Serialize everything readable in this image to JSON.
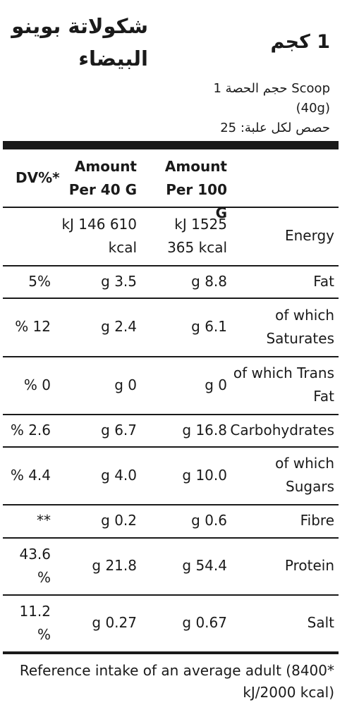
{
  "header": {
    "title_line1": "شكولاتة بوينو",
    "title_line2": "البيضاء",
    "weight": "1 كجم"
  },
  "serving": {
    "size_line1": "حجم الحصة 1 Scoop",
    "size_line2": "(40g)",
    "per_pack": "حصص لكل علبة: 25"
  },
  "table": {
    "columns": {
      "dv": "DV%*",
      "per40_line1": "Amount",
      "per40_line2": "Per 40 G",
      "per100_line1": "Amount",
      "per100_line2": "Per 100 G"
    },
    "rows": [
      {
        "name": [
          "Energy"
        ],
        "dv": [
          ""
        ],
        "per40": [
          "kJ 146 610",
          "kcal"
        ],
        "per100": [
          "kJ 1525",
          "365 kcal"
        ]
      },
      {
        "name": [
          "Fat"
        ],
        "dv": [
          "5%"
        ],
        "per40": [
          "g 3.5"
        ],
        "per100": [
          "g 8.8"
        ]
      },
      {
        "name": [
          "of which",
          "Saturates"
        ],
        "dv": [
          "% 12"
        ],
        "per40": [
          "g 2.4"
        ],
        "per100": [
          "g 6.1"
        ]
      },
      {
        "name": [
          "of which Trans",
          "Fat"
        ],
        "dv": [
          "% 0"
        ],
        "per40": [
          "g 0"
        ],
        "per100": [
          "g 0"
        ]
      },
      {
        "name": [
          "Carbohydrates"
        ],
        "dv": [
          "% 2.6"
        ],
        "per40": [
          "g 6.7"
        ],
        "per100": [
          "g 16.8"
        ]
      },
      {
        "name": [
          "of which",
          "Sugars"
        ],
        "dv": [
          "% 4.4"
        ],
        "per40": [
          "g 4.0"
        ],
        "per100": [
          "g 10.0"
        ]
      },
      {
        "name": [
          "Fibre"
        ],
        "dv": [
          "**"
        ],
        "per40": [
          "g 0.2"
        ],
        "per100": [
          "g 0.6"
        ]
      },
      {
        "name": [
          "Protein"
        ],
        "dv": [
          "43.6",
          "%"
        ],
        "per40": [
          "g 21.8"
        ],
        "per100": [
          "g 54.4"
        ]
      },
      {
        "name": [
          "Salt"
        ],
        "dv": [
          "11.2",
          "%"
        ],
        "per40": [
          "g 0.27"
        ],
        "per100": [
          "g 0.67"
        ]
      }
    ]
  },
  "footer": {
    "line1": "Reference intake of an average adult (8400*",
    "line2": "kJ/2000 kcal)"
  }
}
